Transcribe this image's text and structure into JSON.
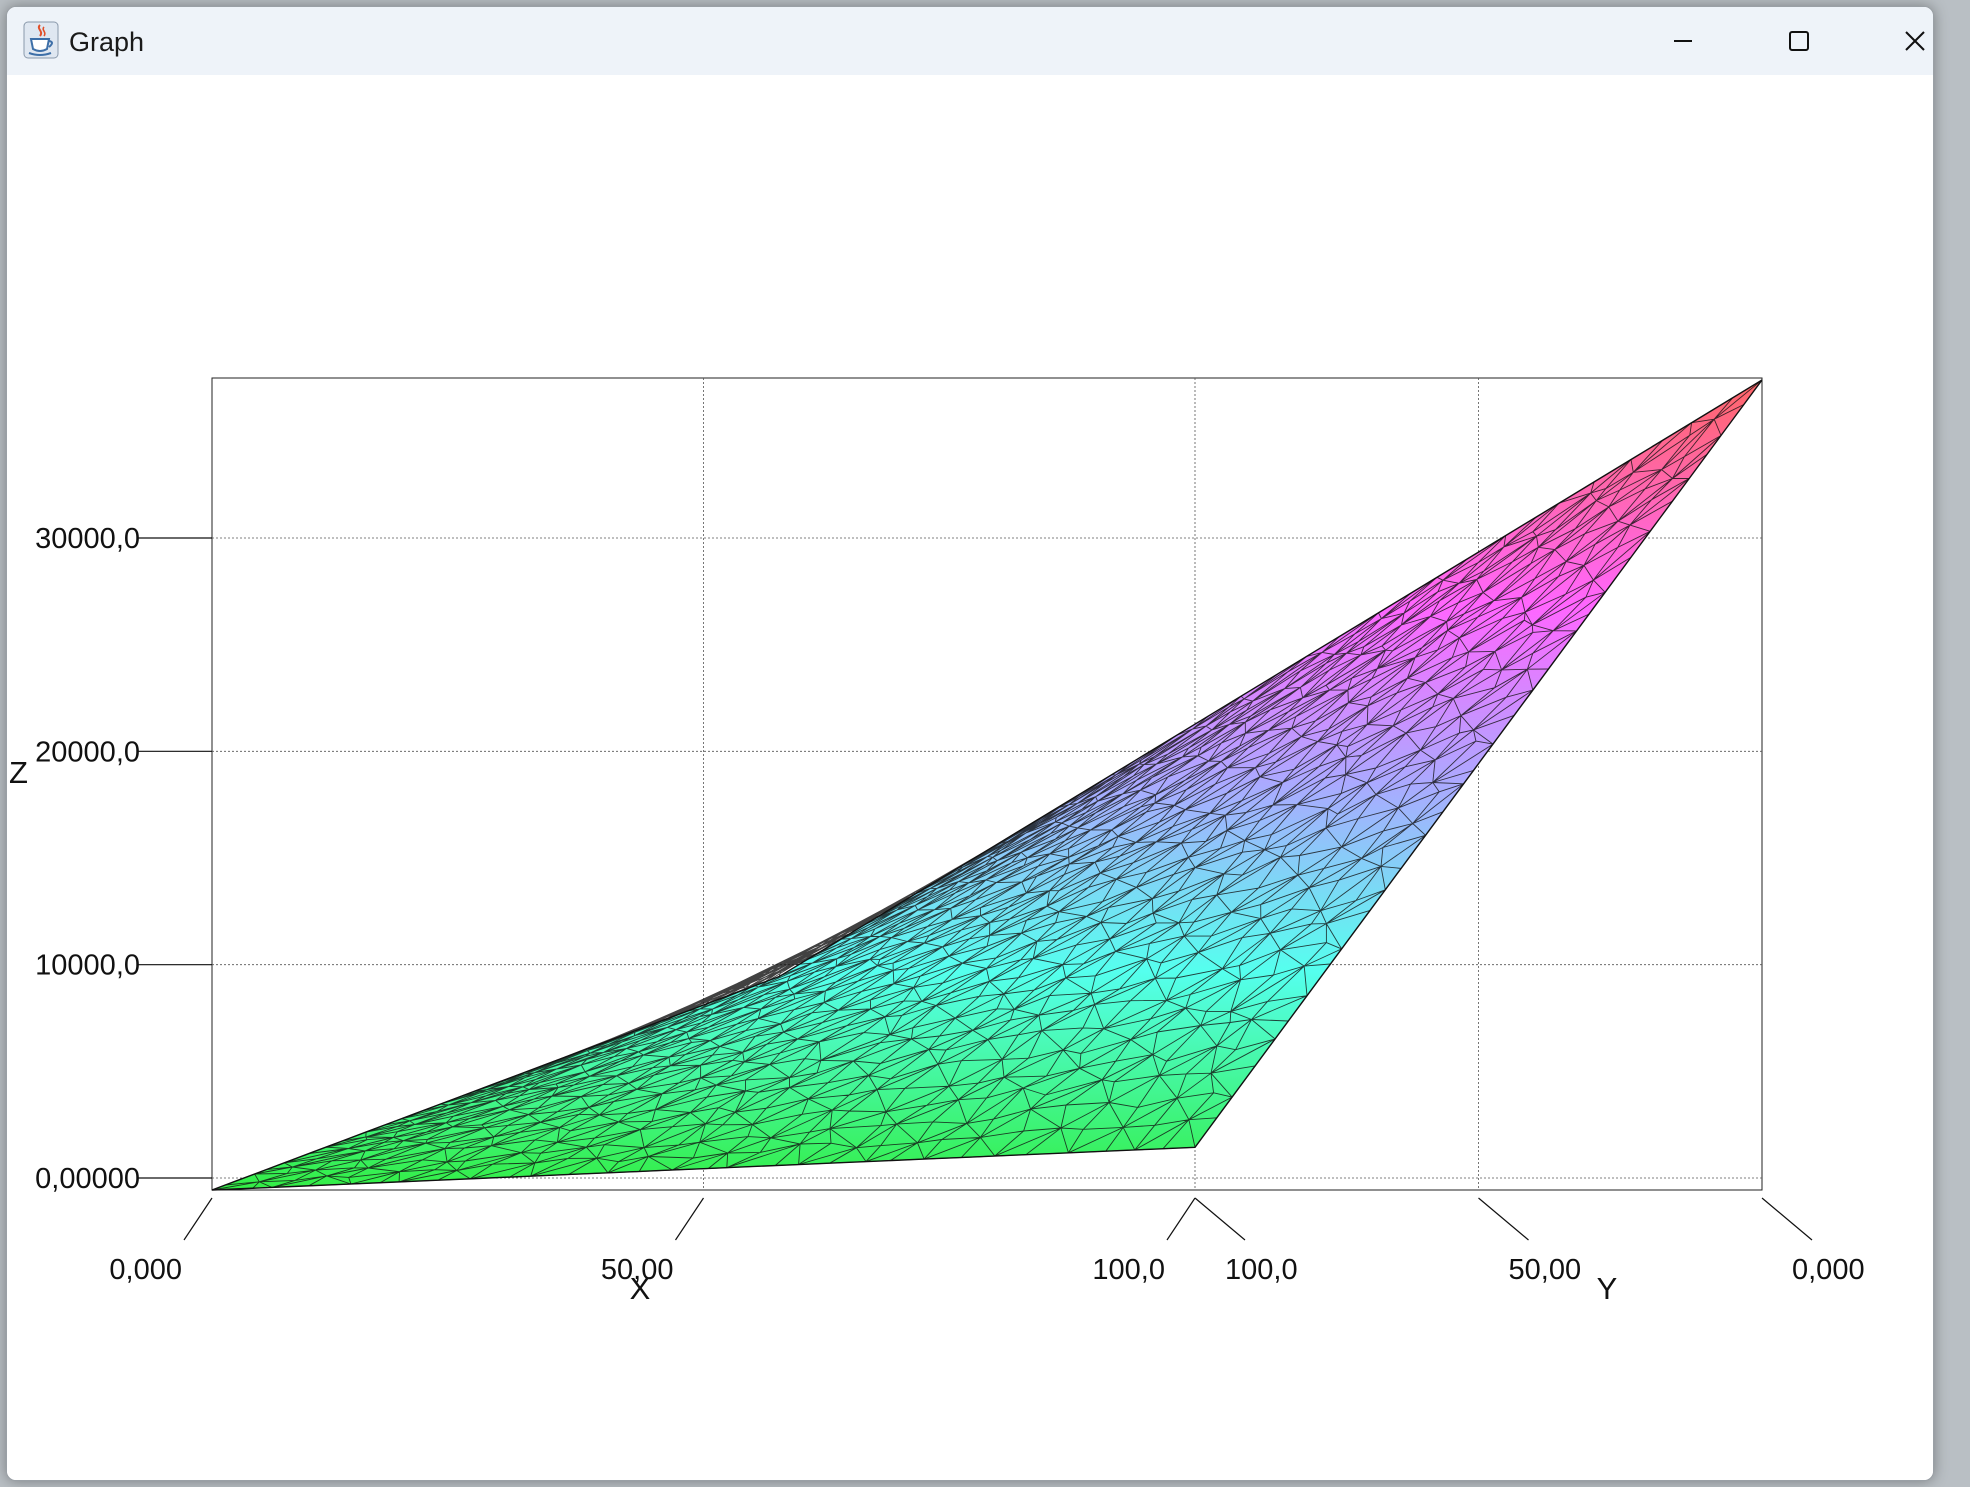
{
  "window": {
    "title": "Graph",
    "icon": "java-cup-icon",
    "controls": [
      "minimize-icon",
      "maximize-icon",
      "close-icon"
    ]
  },
  "chart_data": {
    "type": "surface3d",
    "title": "",
    "xlabel": "X",
    "ylabel": "Y",
    "zlabel": "Z",
    "xlim": [
      0,
      100
    ],
    "ylim": [
      0,
      100
    ],
    "zlim": [
      0,
      37500
    ],
    "grid": true,
    "colormap": [
      "#33ee44",
      "#55ffee",
      "#aaaaff",
      "#ff66ff",
      "#ff6666"
    ],
    "x_ticks": [
      {
        "value": 0,
        "label": "0,000"
      },
      {
        "value": 50,
        "label": "50,00"
      },
      {
        "value": 100,
        "label": "100,0"
      }
    ],
    "y_ticks": [
      {
        "value": 100,
        "label": "100,0"
      },
      {
        "value": 50,
        "label": "50,00"
      },
      {
        "value": 0,
        "label": "0,000"
      }
    ],
    "z_ticks": [
      {
        "value": 0,
        "label": "0,00000"
      },
      {
        "value": 10000,
        "label": "10000,0"
      },
      {
        "value": 20000,
        "label": "20000,0"
      },
      {
        "value": 30000,
        "label": "30000,0"
      }
    ],
    "corner_values": [
      {
        "x": 0,
        "y": 0,
        "z": 0
      },
      {
        "x": 100,
        "y": 0,
        "z": 2000
      },
      {
        "x": 0,
        "y": 100,
        "z": 10000
      },
      {
        "x": 100,
        "y": 100,
        "z": 37500
      }
    ]
  }
}
